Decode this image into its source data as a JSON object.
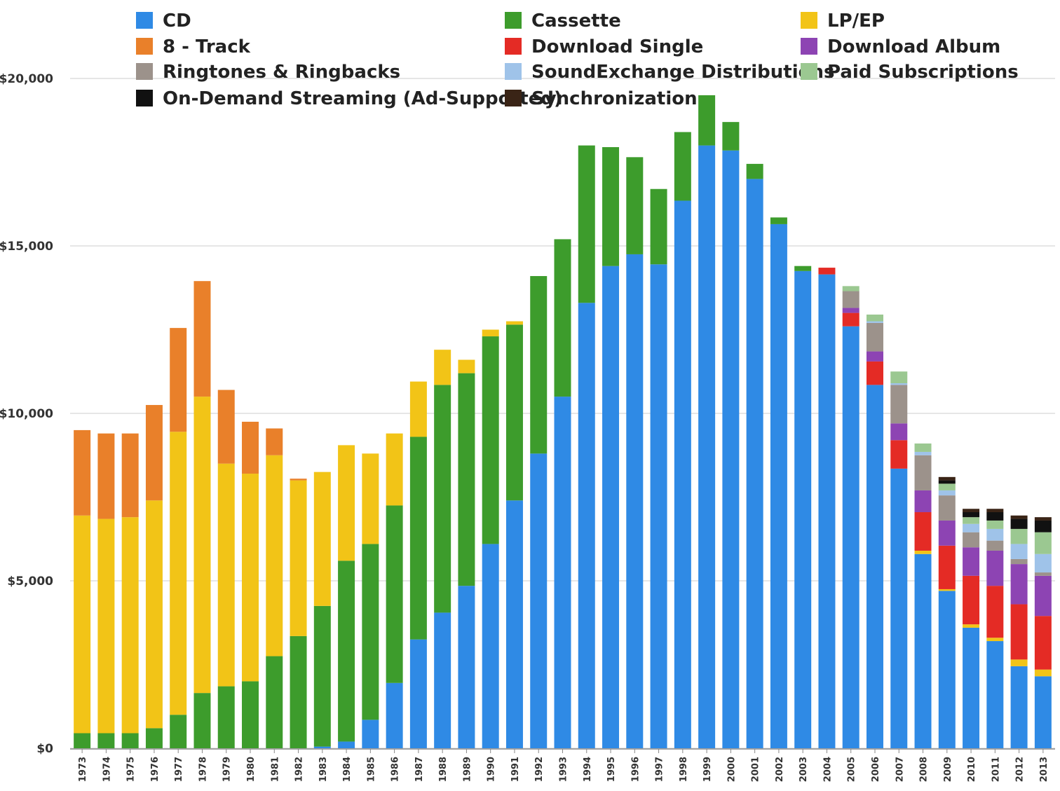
{
  "chart_data": {
    "type": "bar",
    "stacked": true,
    "ylim": [
      0,
      20000
    ],
    "yticks": [
      "$0",
      "$5,000",
      "$10,000",
      "$15,000",
      "$20,000"
    ],
    "ytick_values": [
      0,
      5000,
      10000,
      15000,
      20000
    ],
    "grid": true,
    "legend_position": "top",
    "categories": [
      "1973",
      "1974",
      "1975",
      "1976",
      "1977",
      "1978",
      "1979",
      "1980",
      "1981",
      "1982",
      "1983",
      "1984",
      "1985",
      "1986",
      "1987",
      "1988",
      "1989",
      "1990",
      "1991",
      "1992",
      "1993",
      "1994",
      "1995",
      "1996",
      "1997",
      "1998",
      "1999",
      "2000",
      "2001",
      "2002",
      "2003",
      "2004",
      "2005",
      "2006",
      "2007",
      "2008",
      "2009",
      "2010",
      "2011",
      "2012",
      "2013"
    ],
    "series": [
      {
        "name": "CD",
        "color": "#2f8ae5",
        "values": [
          0,
          0,
          0,
          0,
          0,
          0,
          0,
          0,
          0,
          0,
          50,
          200,
          850,
          1950,
          3250,
          4050,
          4850,
          6100,
          7400,
          8800,
          10500,
          13300,
          14400,
          14750,
          14450,
          16350,
          18000,
          17850,
          17000,
          15650,
          14250,
          14150,
          12600,
          10850,
          8350,
          5800,
          4700,
          3600,
          3200,
          2450,
          2150
        ]
      },
      {
        "name": "Cassette",
        "color": "#3d9c2c",
        "values": [
          450,
          450,
          450,
          600,
          1000,
          1650,
          1850,
          2000,
          2750,
          3350,
          4200,
          5400,
          5250,
          5300,
          6050,
          6800,
          6350,
          6200,
          5250,
          5300,
          4700,
          4700,
          3550,
          2900,
          2250,
          2050,
          1500,
          850,
          450,
          200,
          150,
          0,
          0,
          0,
          0,
          0,
          0,
          0,
          0,
          0,
          0
        ]
      },
      {
        "name": "LP/EP",
        "color": "#f2c417",
        "values": [
          6500,
          6400,
          6450,
          6800,
          8450,
          8850,
          6650,
          6200,
          6000,
          4650,
          4000,
          3450,
          2700,
          2150,
          1650,
          1050,
          400,
          200,
          100,
          0,
          0,
          0,
          0,
          0,
          0,
          0,
          0,
          0,
          0,
          0,
          0,
          0,
          0,
          0,
          0,
          100,
          50,
          100,
          100,
          200,
          200
        ]
      },
      {
        "name": "8 - Track",
        "color": "#e9802a",
        "values": [
          2550,
          2550,
          2500,
          2850,
          3100,
          3450,
          2200,
          1550,
          800,
          50,
          0,
          0,
          0,
          0,
          0,
          0,
          0,
          0,
          0,
          0,
          0,
          0,
          0,
          0,
          0,
          0,
          0,
          0,
          0,
          0,
          0,
          0,
          0,
          0,
          0,
          0,
          0,
          0,
          0,
          0,
          0
        ]
      },
      {
        "name": "Download Single",
        "color": "#e42b25",
        "values": [
          0,
          0,
          0,
          0,
          0,
          0,
          0,
          0,
          0,
          0,
          0,
          0,
          0,
          0,
          0,
          0,
          0,
          0,
          0,
          0,
          0,
          0,
          0,
          0,
          0,
          0,
          0,
          0,
          0,
          0,
          0,
          200,
          400,
          700,
          850,
          1150,
          1300,
          1450,
          1550,
          1650,
          1600
        ]
      },
      {
        "name": "Download Album",
        "color": "#8d44b3",
        "values": [
          0,
          0,
          0,
          0,
          0,
          0,
          0,
          0,
          0,
          0,
          0,
          0,
          0,
          0,
          0,
          0,
          0,
          0,
          0,
          0,
          0,
          0,
          0,
          0,
          0,
          0,
          0,
          0,
          0,
          0,
          0,
          0,
          150,
          300,
          500,
          650,
          750,
          850,
          1050,
          1200,
          1200
        ]
      },
      {
        "name": "Ringtones & Ringbacks",
        "color": "#9c928b",
        "values": [
          0,
          0,
          0,
          0,
          0,
          0,
          0,
          0,
          0,
          0,
          0,
          0,
          0,
          0,
          0,
          0,
          0,
          0,
          0,
          0,
          0,
          0,
          0,
          0,
          0,
          0,
          0,
          0,
          0,
          0,
          0,
          0,
          500,
          850,
          1150,
          1050,
          750,
          450,
          300,
          150,
          100
        ]
      },
      {
        "name": "SoundExchange Distributions",
        "color": "#9fc3e9",
        "values": [
          0,
          0,
          0,
          0,
          0,
          0,
          0,
          0,
          0,
          0,
          0,
          0,
          0,
          0,
          0,
          0,
          0,
          0,
          0,
          0,
          0,
          0,
          0,
          0,
          0,
          0,
          0,
          0,
          0,
          0,
          0,
          0,
          0,
          50,
          50,
          100,
          150,
          250,
          350,
          450,
          550
        ]
      },
      {
        "name": "Paid Subscriptions",
        "color": "#9bc891",
        "values": [
          0,
          0,
          0,
          0,
          0,
          0,
          0,
          0,
          0,
          0,
          0,
          0,
          0,
          0,
          0,
          0,
          0,
          0,
          0,
          0,
          0,
          0,
          0,
          0,
          0,
          0,
          0,
          0,
          0,
          0,
          0,
          0,
          150,
          200,
          350,
          250,
          200,
          200,
          250,
          450,
          650
        ]
      },
      {
        "name": "On-Demand Streaming (Ad-Supported)",
        "color": "#111111",
        "values": [
          0,
          0,
          0,
          0,
          0,
          0,
          0,
          0,
          0,
          0,
          0,
          0,
          0,
          0,
          0,
          0,
          0,
          0,
          0,
          0,
          0,
          0,
          0,
          0,
          0,
          0,
          0,
          0,
          0,
          0,
          0,
          0,
          0,
          0,
          0,
          0,
          100,
          150,
          250,
          300,
          350
        ]
      },
      {
        "name": "Synchronization",
        "color": "#3a2416",
        "values": [
          0,
          0,
          0,
          0,
          0,
          0,
          0,
          0,
          0,
          0,
          0,
          0,
          0,
          0,
          0,
          0,
          0,
          0,
          0,
          0,
          0,
          0,
          0,
          0,
          0,
          0,
          0,
          0,
          0,
          0,
          0,
          0,
          0,
          0,
          0,
          0,
          100,
          100,
          100,
          100,
          100
        ]
      }
    ],
    "legend_order": [
      [
        "CD",
        "Cassette",
        "LP/EP"
      ],
      [
        "8 - Track",
        "Download Single",
        "Download Album"
      ],
      [
        "Ringtones & Ringbacks",
        "SoundExchange Distributions",
        "Paid Subscriptions"
      ],
      [
        "On-Demand Streaming (Ad-Supported)",
        "Synchronization"
      ]
    ]
  }
}
